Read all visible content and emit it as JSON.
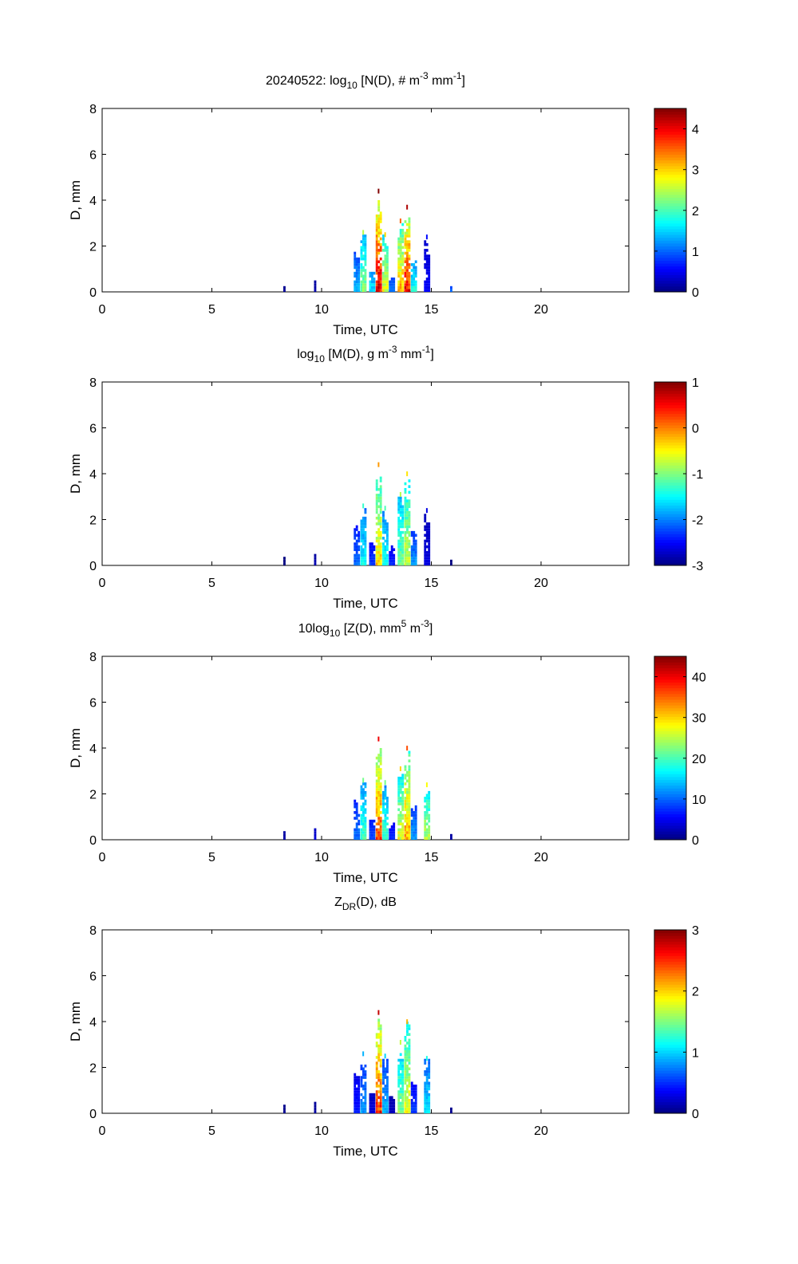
{
  "chart_data": [
    {
      "type": "heatmap",
      "title_parts": [
        "20240522: log",
        "10",
        " [N(D), # m",
        "-3",
        " mm",
        "-1",
        "]"
      ],
      "xlabel": "Time, UTC",
      "ylabel": "D, mm",
      "xlim": [
        0,
        24
      ],
      "ylim": [
        0,
        8
      ],
      "xticks": [
        "0",
        "5",
        "10",
        "15",
        "20"
      ],
      "yticks": [
        "0",
        "2",
        "4",
        "6",
        "8"
      ],
      "clim": [
        0,
        4.5
      ],
      "cticks": [
        "0",
        "1",
        "2",
        "3",
        "4"
      ],
      "colormap": "jet",
      "events": [
        {
          "t": 8.3,
          "d_top": 0.3,
          "peak": 0.1
        },
        {
          "t": 9.7,
          "d_top": 0.5,
          "peak": 0.2
        },
        {
          "t": 11.6,
          "d_top": 1.8,
          "peak": 1.5
        },
        {
          "t": 11.9,
          "d_top": 2.5,
          "peak": 2.5
        },
        {
          "t": 12.3,
          "d_top": 1.0,
          "peak": 1.8
        },
        {
          "t": 12.6,
          "d_top": 4.3,
          "peak": 4.5
        },
        {
          "t": 12.9,
          "d_top": 2.4,
          "peak": 3.0
        },
        {
          "t": 13.2,
          "d_top": 0.8,
          "peak": 1.2
        },
        {
          "t": 13.6,
          "d_top": 3.0,
          "peak": 3.5
        },
        {
          "t": 13.9,
          "d_top": 3.6,
          "peak": 4.3
        },
        {
          "t": 14.2,
          "d_top": 1.5,
          "peak": 2.0
        },
        {
          "t": 14.8,
          "d_top": 2.3,
          "peak": 0.6
        },
        {
          "t": 15.9,
          "d_top": 0.2,
          "peak": 1.2
        }
      ]
    },
    {
      "type": "heatmap",
      "title_parts": [
        "log",
        "10",
        " [M(D), g m",
        "-3",
        " mm",
        "-1",
        "]"
      ],
      "xlabel": "Time, UTC",
      "ylabel": "D, mm",
      "xlim": [
        0,
        24
      ],
      "ylim": [
        0,
        8
      ],
      "xticks": [
        "0",
        "5",
        "10",
        "15",
        "20"
      ],
      "yticks": [
        "0",
        "2",
        "4",
        "6",
        "8"
      ],
      "clim": [
        -3,
        1
      ],
      "cticks": [
        "-3",
        "-2",
        "-1",
        "0",
        "1"
      ],
      "colormap": "jet",
      "events": [
        {
          "t": 8.3,
          "d_top": 0.3,
          "peak": -3.0
        },
        {
          "t": 9.7,
          "d_top": 0.5,
          "peak": -2.8
        },
        {
          "t": 11.6,
          "d_top": 1.8,
          "peak": -2.0
        },
        {
          "t": 11.9,
          "d_top": 2.5,
          "peak": -1.3
        },
        {
          "t": 12.3,
          "d_top": 1.0,
          "peak": -2.2
        },
        {
          "t": 12.6,
          "d_top": 4.3,
          "peak": -0.1
        },
        {
          "t": 12.9,
          "d_top": 2.4,
          "peak": -1.2
        },
        {
          "t": 13.2,
          "d_top": 0.8,
          "peak": -2.3
        },
        {
          "t": 13.6,
          "d_top": 3.0,
          "peak": -0.8
        },
        {
          "t": 13.9,
          "d_top": 3.9,
          "peak": -0.4
        },
        {
          "t": 14.2,
          "d_top": 1.5,
          "peak": -1.8
        },
        {
          "t": 14.8,
          "d_top": 2.3,
          "peak": -2.6
        },
        {
          "t": 15.9,
          "d_top": 0.2,
          "peak": -3.0
        }
      ]
    },
    {
      "type": "heatmap",
      "title_parts": [
        "10log",
        "10",
        " [Z(D),  mm",
        "5",
        " m",
        "-3",
        "]"
      ],
      "xlabel": "Time, UTC",
      "ylabel": "D, mm",
      "xlim": [
        0,
        24
      ],
      "ylim": [
        0,
        8
      ],
      "xticks": [
        "0",
        "5",
        "10",
        "15",
        "20"
      ],
      "yticks": [
        "0",
        "2",
        "4",
        "6",
        "8"
      ],
      "clim": [
        0,
        45
      ],
      "cticks": [
        "0",
        "10",
        "20",
        "30",
        "40"
      ],
      "colormap": "jet",
      "events": [
        {
          "t": 8.3,
          "d_top": 0.3,
          "peak": 2
        },
        {
          "t": 9.7,
          "d_top": 0.5,
          "peak": 4
        },
        {
          "t": 11.6,
          "d_top": 1.8,
          "peak": 12
        },
        {
          "t": 11.9,
          "d_top": 2.5,
          "peak": 22
        },
        {
          "t": 12.3,
          "d_top": 1.0,
          "peak": 10
        },
        {
          "t": 12.6,
          "d_top": 4.3,
          "peak": 40
        },
        {
          "t": 12.9,
          "d_top": 2.4,
          "peak": 22
        },
        {
          "t": 13.2,
          "d_top": 0.8,
          "peak": 8
        },
        {
          "t": 13.6,
          "d_top": 3.0,
          "peak": 30
        },
        {
          "t": 13.9,
          "d_top": 3.9,
          "peak": 36
        },
        {
          "t": 14.2,
          "d_top": 1.5,
          "peak": 14
        },
        {
          "t": 14.8,
          "d_top": 2.3,
          "peak": 28
        },
        {
          "t": 15.9,
          "d_top": 0.2,
          "peak": 2
        }
      ]
    },
    {
      "type": "heatmap",
      "title_parts": [
        "Z",
        "DR",
        "(D), dB"
      ],
      "xlabel": "Time, UTC",
      "ylabel": "D, mm",
      "xlim": [
        0,
        24
      ],
      "ylim": [
        0,
        8
      ],
      "xticks": [
        "0",
        "5",
        "10",
        "15",
        "20"
      ],
      "yticks": [
        "0",
        "2",
        "4",
        "6",
        "8"
      ],
      "clim": [
        0,
        3
      ],
      "cticks": [
        "0",
        "1",
        "2",
        "3"
      ],
      "colormap": "jet",
      "events": [
        {
          "t": 8.3,
          "d_top": 0.3,
          "peak": 0.05
        },
        {
          "t": 9.7,
          "d_top": 0.5,
          "peak": 0.1
        },
        {
          "t": 11.6,
          "d_top": 1.8,
          "peak": 0.5
        },
        {
          "t": 11.9,
          "d_top": 2.5,
          "peak": 0.9
        },
        {
          "t": 12.3,
          "d_top": 1.0,
          "peak": 0.3
        },
        {
          "t": 12.6,
          "d_top": 4.3,
          "peak": 2.8
        },
        {
          "t": 12.9,
          "d_top": 2.4,
          "peak": 1.0
        },
        {
          "t": 13.2,
          "d_top": 0.8,
          "peak": 0.2
        },
        {
          "t": 13.6,
          "d_top": 3.0,
          "peak": 1.7
        },
        {
          "t": 13.9,
          "d_top": 3.9,
          "peak": 2.1
        },
        {
          "t": 14.2,
          "d_top": 1.5,
          "peak": 0.6
        },
        {
          "t": 14.8,
          "d_top": 2.3,
          "peak": 1.2
        },
        {
          "t": 15.9,
          "d_top": 0.2,
          "peak": 0.05
        }
      ]
    }
  ]
}
